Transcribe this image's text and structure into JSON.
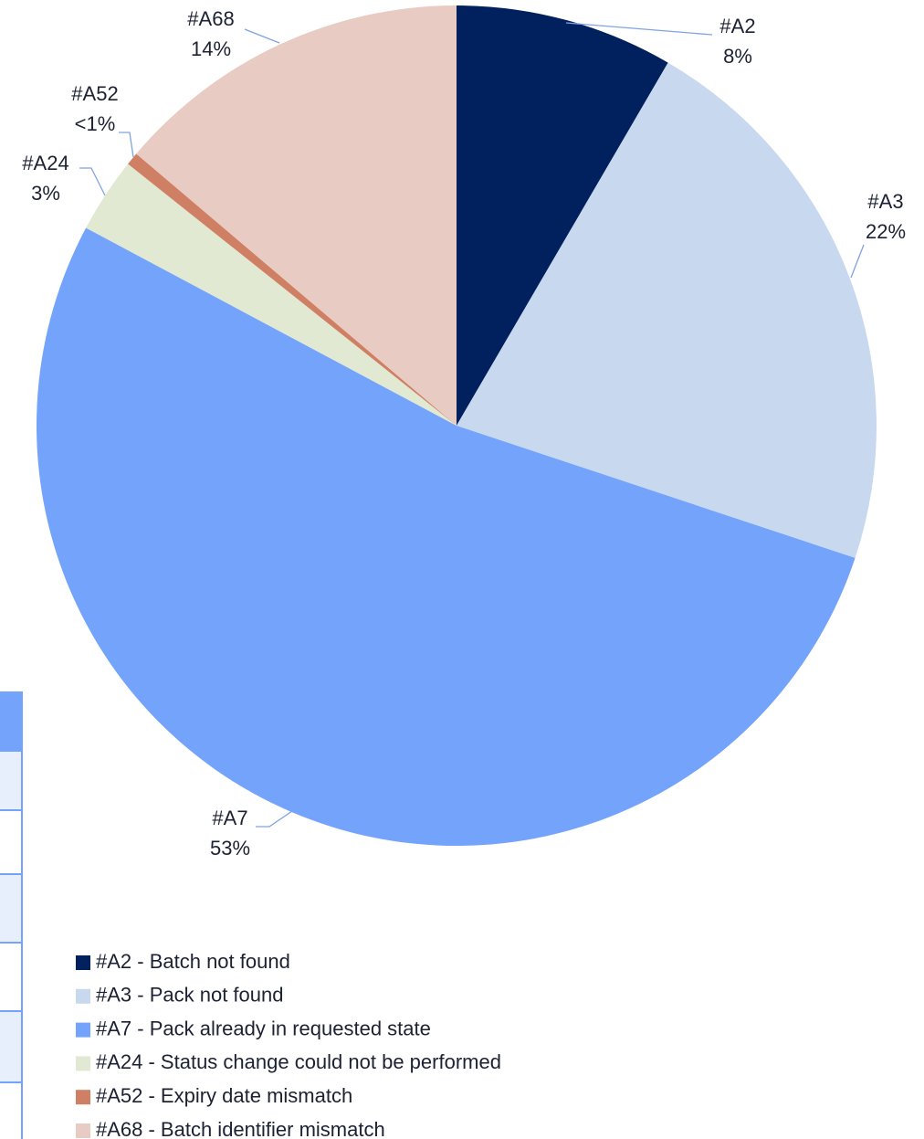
{
  "chart_data": {
    "type": "pie",
    "categories": [
      "#A2",
      "#A3",
      "#A7",
      "#A24",
      "#A52",
      "#A68"
    ],
    "legend_labels": [
      "#A2 - Batch not found",
      "#A3 - Pack not found",
      "#A7 - Pack already in requested state",
      "#A24 - Status change could not be performed",
      "#A52 - Expiry date mismatch",
      "#A68 - Batch identifier mismatch"
    ],
    "values": [
      8.4,
      21.7,
      52.7,
      2.9,
      0.5,
      13.8
    ],
    "value_labels": [
      "8%",
      "22%",
      "53%",
      "3%",
      "<1%",
      "14%"
    ],
    "colors": [
      "#00215e",
      "#c7d8ef",
      "#74a3fc",
      "#e1e9d2",
      "#cf7f63",
      "#e8cbc3"
    ],
    "legend": "bottom-left"
  }
}
